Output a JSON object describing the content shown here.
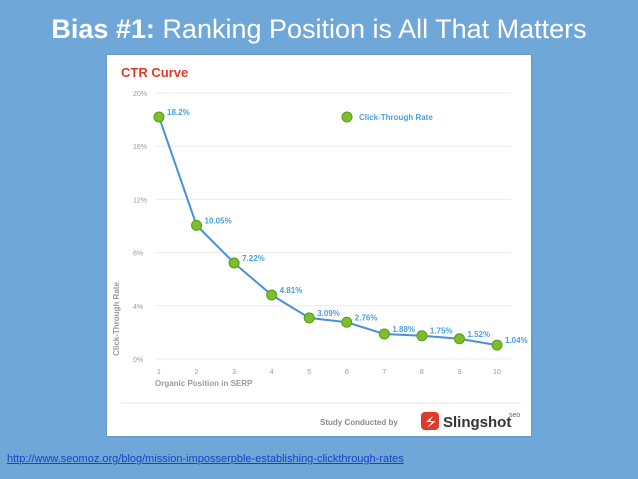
{
  "slide": {
    "title_lead": "Bias #1:",
    "title_rest": "Ranking Position is All That Matters",
    "source_link": "http://www.seomoz.org/blog/mission-imposserpble-establishing-clickthrough-rates"
  },
  "chart_data": {
    "type": "line",
    "title": "CTR Curve",
    "xlabel": "Organic Position in SERP",
    "ylabel": "Click-Through Rate",
    "x": [
      1,
      2,
      3,
      4,
      5,
      6,
      7,
      8,
      9,
      10
    ],
    "series": [
      {
        "name": "Click-Through Rate",
        "values": [
          18.2,
          10.05,
          7.22,
          4.81,
          3.09,
          2.76,
          1.88,
          1.75,
          1.52,
          1.04
        ],
        "labels": [
          "18.2%",
          "10.05%",
          "7.22%",
          "4.81%",
          "3.09%",
          "2.76%",
          "1.88%",
          "1.75%",
          "1.52%",
          "1.04%"
        ]
      }
    ],
    "xticks": [
      "1",
      "2",
      "3",
      "4",
      "5",
      "6",
      "7",
      "8",
      "9",
      "10"
    ],
    "yticks": [
      "0%",
      "4%",
      "8%",
      "12%",
      "16%",
      "20%"
    ],
    "ylim": [
      0,
      20
    ],
    "legend_position": "top-right",
    "footer_text": "Study Conducted by",
    "brand_name": "Slingshot",
    "brand_suffix": "seo",
    "colors": {
      "line": "#4a90d9",
      "marker": "#7cbf2a",
      "title": "#e03a2a",
      "data_label": "#4aa0d8",
      "brand_icon": "#e03a2a"
    }
  }
}
